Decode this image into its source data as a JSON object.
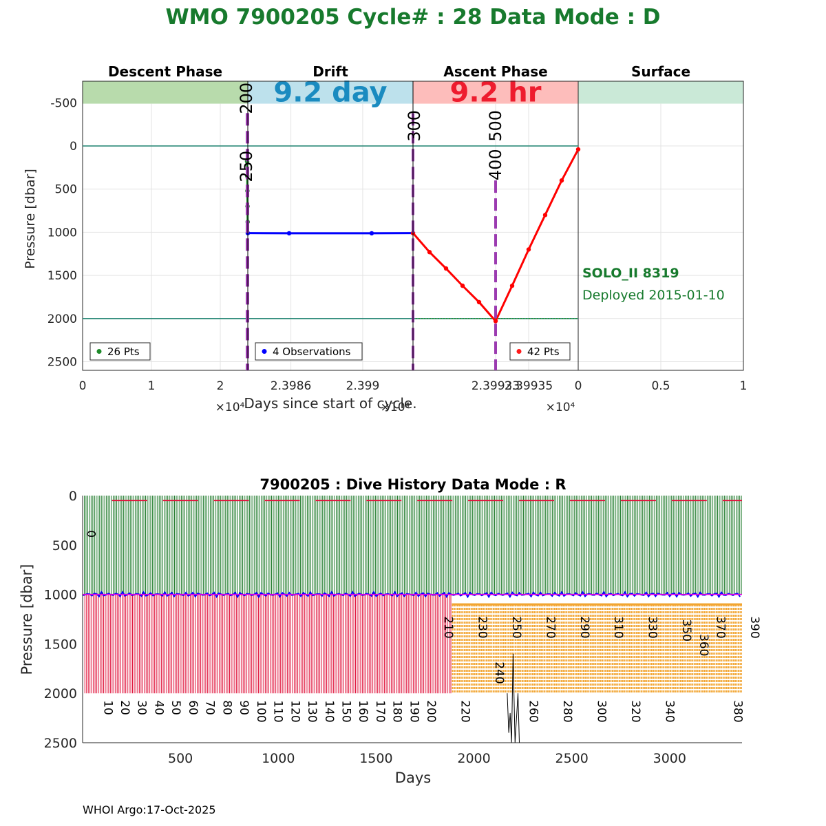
{
  "header": {
    "title": "WMO 7900205   Cycle# : 28   Data Mode : D",
    "title_color": "#177a2d"
  },
  "chart_data": [
    {
      "type": "line",
      "name": "cycle-profile",
      "ylabel": "Pressure [dbar]",
      "xlabel": "Days since start of cycle.",
      "ylim": [
        -750,
        2600
      ],
      "y_reversed": true,
      "y_ticks": [
        -500,
        0,
        500,
        1000,
        1500,
        2000,
        2500
      ],
      "y_tick_labels": [
        "-500",
        "0",
        "500",
        "1000",
        "1500",
        "2000",
        "2500"
      ],
      "reference_lines": [
        0,
        2000
      ],
      "panels": [
        {
          "key": "descent",
          "title": "Descent Phase",
          "band_color": "#b8dbac",
          "band_text": "",
          "x_tick_labels": [
            "0",
            "1",
            "2"
          ],
          "x_tick_values": [
            0,
            1,
            2
          ],
          "xlim": [
            0,
            2.4
          ],
          "exponent": "×10⁴",
          "legend": "26 Pts",
          "legend_color": "#1e8a2a",
          "series": {
            "name": "descent",
            "color": "#1e8a2a",
            "x": [
              2.39,
              2.392,
              2.394,
              2.396,
              2.398,
              2.4
            ],
            "y": [
              180,
              350,
              520,
              700,
              880,
              1010
            ]
          }
        },
        {
          "key": "drift",
          "title": "Drift",
          "band_color": "#bde1ec",
          "band_text": "9.2 day",
          "band_text_color": "#1a8bc0",
          "x_tick_labels": [
            "2.3986",
            "2.399"
          ],
          "x_tick_values": [
            2.3986,
            2.399
          ],
          "xlim": [
            2.39836,
            2.39928
          ],
          "exponent": "×10⁴",
          "legend": "4 Observations",
          "legend_color": "#0000ff",
          "series": {
            "name": "drift",
            "color": "#0000ff",
            "x": [
              2.39836,
              2.39859,
              2.39905,
              2.39928
            ],
            "y": [
              1010,
              1012,
              1012,
              1010
            ]
          }
        },
        {
          "key": "ascent",
          "title": "Ascent Phase",
          "band_color": "#fdbdbb",
          "band_text": "9.2 hr",
          "band_text_color": "#ee1c2e",
          "x_tick_labels": [
            "2.39933",
            "2.39935"
          ],
          "x_tick_values": [
            2.39933,
            2.39935
          ],
          "xlim": [
            2.39928,
            2.39938
          ],
          "exponent": "×10⁴",
          "legend": "42 Pts",
          "legend_color": "#ff1a1a",
          "series": {
            "name": "ascent",
            "color": "#ff0000",
            "x": [
              2.39928,
              2.39929,
              2.3993,
              2.39931,
              2.39932,
              2.39933,
              2.39934,
              2.39935,
              2.39936,
              2.39937,
              2.39938
            ],
            "y": [
              1010,
              1230,
              1420,
              1620,
              1810,
              2030,
              1620,
              1200,
              800,
              400,
              40
            ]
          }
        },
        {
          "key": "surface",
          "title": "Surface",
          "band_color": "#cae9d7",
          "band_text": "",
          "x_tick_labels": [
            "0",
            "0.5",
            "1"
          ],
          "x_tick_values": [
            0,
            0.5,
            1
          ],
          "xlim": [
            0,
            1
          ],
          "exponent": "",
          "legend": "",
          "series": null
        }
      ],
      "markers": [
        {
          "label": "200",
          "panel": "drift",
          "x": 2.39836
        },
        {
          "label": "250",
          "panel": "descent",
          "x": 2.4
        },
        {
          "label": "300",
          "panel": "ascent",
          "x": 2.39928
        },
        {
          "label": "400",
          "panel": "ascent",
          "x": 2.39933
        },
        {
          "label": "500",
          "panel": "ascent",
          "x": 2.39933
        }
      ],
      "float_info": {
        "model": "SOLO_II 8319",
        "deployed": "Deployed 2015-01-10",
        "color": "#177a2d"
      }
    },
    {
      "type": "bar",
      "name": "dive-history",
      "title": "7900205 : Dive History      Data Mode : R",
      "xlabel": "Days",
      "ylabel": "Pressure [dbar]",
      "xlim": [
        0,
        3370
      ],
      "ylim": [
        0,
        2500
      ],
      "y_reversed": true,
      "x_ticks": [
        500,
        1000,
        1500,
        2000,
        2500,
        3000
      ],
      "x_tick_labels": [
        "500",
        "1000",
        "1500",
        "2000",
        "2500",
        "3000"
      ],
      "y_ticks": [
        0,
        500,
        1000,
        1500,
        2000,
        2500
      ],
      "y_tick_labels": [
        "0",
        "500",
        "1000",
        "1500",
        "2000",
        "2500"
      ],
      "cycle_interval_days": 8.7,
      "profile_groups": [
        {
          "name": "early-profiles",
          "cycles": [
            1,
            216
          ],
          "max_pressure": 2000,
          "color": "#e0143c"
        },
        {
          "name": "late-profiles",
          "cycles": [
            217,
            390
          ],
          "max_pressure": 2000,
          "color": "#f2a532"
        }
      ],
      "parking_pressure": 1000,
      "cycle_labels": [
        "0",
        "10",
        "20",
        "30",
        "40",
        "50",
        "60",
        "70",
        "80",
        "90",
        "100",
        "110",
        "120",
        "130",
        "140",
        "150",
        "160",
        "170",
        "180",
        "190",
        "200",
        "210",
        "220",
        "230",
        "240",
        "250",
        "260",
        "270",
        "280",
        "290",
        "300",
        "310",
        "320",
        "330",
        "340",
        "350",
        "360",
        "370",
        "380",
        "390"
      ]
    }
  ],
  "footer": {
    "credit": "WHOI Argo:17-Oct-2025"
  }
}
